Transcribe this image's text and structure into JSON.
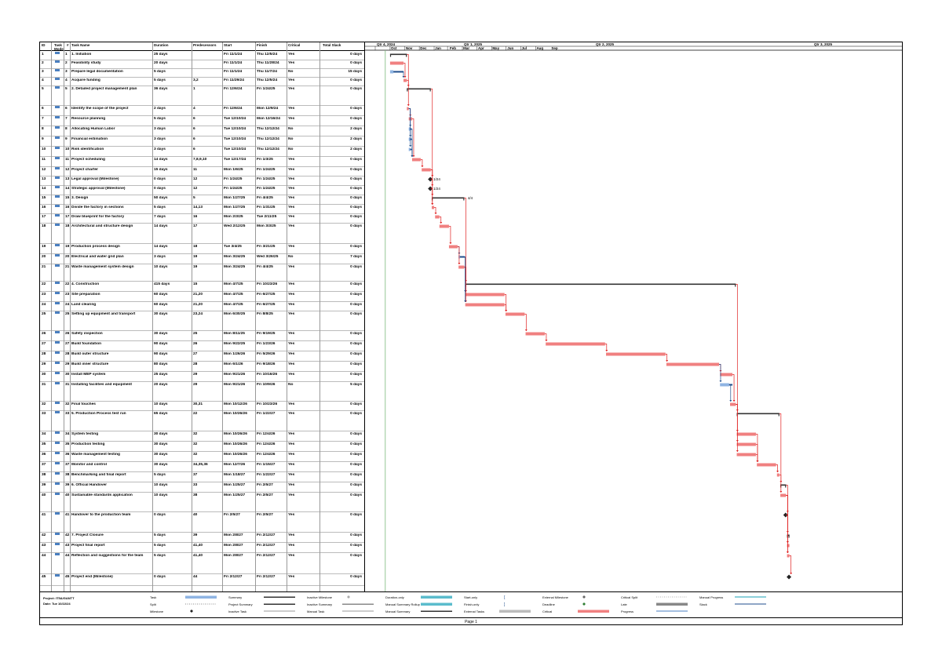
{
  "columns": [
    "ID",
    "Task Mode",
    "#",
    "Task Name",
    "Duration",
    "Predecessors",
    "Start",
    "Finish",
    "Critical",
    "Total Slack"
  ],
  "timescale": {
    "quarters": [
      "Qtr 4, 2024",
      "Qtr 1, 2025",
      "Qtr 2, 2025",
      "Qtr 3, 2025"
    ],
    "months": [
      "Oct",
      "Nov",
      "Dec",
      "Jan",
      "Feb",
      "Mar",
      "Apr",
      "May",
      "Jun",
      "Jul",
      "Aug",
      "Sep"
    ]
  },
  "tasks": [
    {
      "id": "1",
      "n": "1",
      "name": "1. Initiation",
      "dur": "25 days",
      "pred": "",
      "start": "Fri 11/1/24",
      "finish": "Thu 12/5/24",
      "crit": "Yes",
      "slack": "0 days",
      "h": 11
    },
    {
      "id": "2",
      "n": "2",
      "name": "Feasibility study",
      "dur": "20 days",
      "pred": "",
      "start": "Fri 11/1/24",
      "finish": "Thu 11/28/24",
      "crit": "Yes",
      "slack": "0 days",
      "h": 11
    },
    {
      "id": "3",
      "n": "3",
      "name": "Prepare legal documentation",
      "dur": "5 days",
      "pred": "",
      "start": "Fri 11/1/24",
      "finish": "Thu 11/7/24",
      "crit": "No",
      "slack": "15 days",
      "h": 11
    },
    {
      "id": "4",
      "n": "4",
      "name": "Acquire funding",
      "dur": "5 days",
      "pred": "3,2",
      "start": "Fri 11/29/24",
      "finish": "Thu 12/5/24",
      "crit": "Yes",
      "slack": "0 days",
      "h": 11
    },
    {
      "id": "5",
      "n": "5",
      "name": "2. Detailed project management plan",
      "dur": "36 days",
      "pred": "1",
      "start": "Fri 12/6/24",
      "finish": "Fri 1/24/25",
      "crit": "Yes",
      "slack": "0 days",
      "h": 25
    },
    {
      "id": "6",
      "n": "6",
      "name": "Identify the scope of the project",
      "dur": "2 days",
      "pred": "4",
      "start": "Fri 12/6/24",
      "finish": "Mon 12/9/24",
      "crit": "Yes",
      "slack": "0 days",
      "h": 13
    },
    {
      "id": "7",
      "n": "7",
      "name": "Resource planning",
      "dur": "5 days",
      "pred": "6",
      "start": "Tue 12/10/24",
      "finish": "Mon 12/16/24",
      "crit": "Yes",
      "slack": "0 days",
      "h": 13
    },
    {
      "id": "8",
      "n": "8",
      "name": "Allocating Human Labor",
      "dur": "3 days",
      "pred": "6",
      "start": "Tue 12/10/24",
      "finish": "Thu 12/12/24",
      "crit": "No",
      "slack": "2 days",
      "h": 13
    },
    {
      "id": "9",
      "n": "9",
      "name": "Financial estimation",
      "dur": "3 days",
      "pred": "6",
      "start": "Tue 12/10/24",
      "finish": "Thu 12/12/24",
      "crit": "No",
      "slack": "2 days",
      "h": 13
    },
    {
      "id": "10",
      "n": "10",
      "name": "Risk identification",
      "dur": "3 days",
      "pred": "6",
      "start": "Tue 12/10/24",
      "finish": "Thu 12/12/24",
      "crit": "No",
      "slack": "2 days",
      "h": 13
    },
    {
      "id": "11",
      "n": "11",
      "name": "Project scheduling",
      "dur": "14 days",
      "pred": "7,8,9,10",
      "start": "Tue 12/17/24",
      "finish": "Fri 1/3/25",
      "crit": "Yes",
      "slack": "0 days",
      "h": 13
    },
    {
      "id": "12",
      "n": "12",
      "name": "Project charter",
      "dur": "15 days",
      "pred": "11",
      "start": "Mon 1/6/25",
      "finish": "Fri 1/24/25",
      "crit": "Yes",
      "slack": "0 days",
      "h": 12
    },
    {
      "id": "13",
      "n": "13",
      "name": "Legal approval (Milestone)",
      "dur": "0 days",
      "pred": "12",
      "start": "Fri 1/24/25",
      "finish": "Fri 1/24/25",
      "crit": "Yes",
      "slack": "0 days",
      "h": 12
    },
    {
      "id": "14",
      "n": "14",
      "name": "Strategic approval (Milestone)",
      "dur": "0 days",
      "pred": "12",
      "start": "Fri 1/24/25",
      "finish": "Fri 1/24/25",
      "crit": "Yes",
      "slack": "0 days",
      "h": 12
    },
    {
      "id": "15",
      "n": "15",
      "name": "3. Design",
      "dur": "50 days",
      "pred": "5",
      "start": "Mon 1/27/25",
      "finish": "Fri 4/4/25",
      "crit": "Yes",
      "slack": "0 days",
      "h": 12
    },
    {
      "id": "16",
      "n": "16",
      "name": "Divide the factory in sections",
      "dur": "5 days",
      "pred": "14,13",
      "start": "Mon 1/27/25",
      "finish": "Fri 1/31/25",
      "crit": "Yes",
      "slack": "0 days",
      "h": 12
    },
    {
      "id": "17",
      "n": "17",
      "name": "Draw blueprint for the factory",
      "dur": "7 days",
      "pred": "16",
      "start": "Mon 2/3/25",
      "finish": "Tue 2/11/25",
      "crit": "Yes",
      "slack": "0 days",
      "h": 12
    },
    {
      "id": "18",
      "n": "18",
      "name": "Architectural and structure design",
      "dur": "14 days",
      "pred": "17",
      "start": "Wed 2/12/25",
      "finish": "Mon 3/3/25",
      "crit": "Yes",
      "slack": "0 days",
      "h": 26
    },
    {
      "id": "19",
      "n": "19",
      "name": "Production process design",
      "dur": "14 days",
      "pred": "18",
      "start": "Tue 3/4/25",
      "finish": "Fri 3/21/25",
      "crit": "Yes",
      "slack": "0 days",
      "h": 13
    },
    {
      "id": "20",
      "n": "20",
      "name": "Electrical and water grid plan",
      "dur": "3 days",
      "pred": "19",
      "start": "Mon 3/24/25",
      "finish": "Wed 3/26/25",
      "crit": "No",
      "slack": "7 days",
      "h": 13
    },
    {
      "id": "21",
      "n": "21",
      "name": "Waste management system design",
      "dur": "10 days",
      "pred": "19",
      "start": "Mon 3/24/25",
      "finish": "Fri 4/4/25",
      "crit": "Yes",
      "slack": "0 days",
      "h": 22
    },
    {
      "id": "22",
      "n": "22",
      "name": "4. Construction",
      "dur": "415 days",
      "pred": "15",
      "start": "Mon 4/7/25",
      "finish": "Fri 10/23/26",
      "crit": "Yes",
      "slack": "0 days",
      "h": 13
    },
    {
      "id": "23",
      "n": "23",
      "name": "Site preparation",
      "dur": "60 days",
      "pred": "21,20",
      "start": "Mon 4/7/25",
      "finish": "Fri 6/27/25",
      "crit": "Yes",
      "slack": "0 days",
      "h": 13
    },
    {
      "id": "24",
      "n": "24",
      "name": "Land clearing",
      "dur": "60 days",
      "pred": "21,20",
      "start": "Mon 4/7/25",
      "finish": "Fri 6/27/25",
      "crit": "Yes",
      "slack": "0 days",
      "h": 12
    },
    {
      "id": "25",
      "n": "25",
      "name": "Setting up equipment and transport",
      "dur": "30 days",
      "pred": "23,24",
      "start": "Mon 6/30/25",
      "finish": "Fri 8/8/25",
      "crit": "Yes",
      "slack": "0 days",
      "h": 25
    },
    {
      "id": "26",
      "n": "26",
      "name": "Safety inspection",
      "dur": "30 days",
      "pred": "25",
      "start": "Mon 8/11/25",
      "finish": "Fri 9/19/25",
      "crit": "Yes",
      "slack": "0 days",
      "h": 13
    },
    {
      "id": "27",
      "n": "27",
      "name": "Build foundation",
      "dur": "90 days",
      "pred": "26",
      "start": "Mon 9/22/25",
      "finish": "Fri 1/23/26",
      "crit": "Yes",
      "slack": "0 days",
      "h": 13
    },
    {
      "id": "28",
      "n": "28",
      "name": "Build outer structure",
      "dur": "90 days",
      "pred": "27",
      "start": "Mon 1/26/26",
      "finish": "Fri 5/29/26",
      "crit": "Yes",
      "slack": "0 days",
      "h": 13
    },
    {
      "id": "29",
      "n": "29",
      "name": "Build inner structure",
      "dur": "80 days",
      "pred": "28",
      "start": "Mon 6/1/26",
      "finish": "Fri 9/18/26",
      "crit": "Yes",
      "slack": "0 days",
      "h": 13
    },
    {
      "id": "30",
      "n": "30",
      "name": "Install MEP system",
      "dur": "25 days",
      "pred": "29",
      "start": "Mon 9/21/26",
      "finish": "Fri 10/16/26",
      "crit": "Yes",
      "slack": "0 days",
      "h": 13
    },
    {
      "id": "31",
      "n": "31",
      "name": "Installing facilities and equipment",
      "dur": "20 days",
      "pred": "29",
      "start": "Mon 9/21/26",
      "finish": "Fri 10/9/26",
      "crit": "No",
      "slack": "5 days",
      "h": 25
    },
    {
      "id": "32",
      "n": "32",
      "name": "Final touches",
      "dur": "10 days",
      "pred": "30,31",
      "start": "Mon 10/12/26",
      "finish": "Fri 10/23/26",
      "crit": "Yes",
      "slack": "0 days",
      "h": 12
    },
    {
      "id": "33",
      "n": "33",
      "name": "5. Production Process test run",
      "dur": "65 days",
      "pred": "22",
      "start": "Mon 10/26/26",
      "finish": "Fri 1/22/27",
      "crit": "Yes",
      "slack": "0 days",
      "h": 26
    },
    {
      "id": "34",
      "n": "34",
      "name": "System testing",
      "dur": "30 days",
      "pred": "32",
      "start": "Mon 10/26/26",
      "finish": "Fri 12/4/26",
      "crit": "Yes",
      "slack": "0 days",
      "h": 13
    },
    {
      "id": "35",
      "n": "35",
      "name": "Production testing",
      "dur": "30 days",
      "pred": "32",
      "start": "Mon 10/26/26",
      "finish": "Fri 12/4/26",
      "crit": "Yes",
      "slack": "0 days",
      "h": 13
    },
    {
      "id": "36",
      "n": "36",
      "name": "Waste management testing",
      "dur": "30 days",
      "pred": "32",
      "start": "Mon 10/26/26",
      "finish": "Fri 12/4/26",
      "crit": "Yes",
      "slack": "0 days",
      "h": 13
    },
    {
      "id": "37",
      "n": "37",
      "name": "Monitor and control",
      "dur": "30 days",
      "pred": "34,35,36",
      "start": "Mon 12/7/26",
      "finish": "Fri 1/15/27",
      "crit": "Yes",
      "slack": "0 days",
      "h": 13
    },
    {
      "id": "38",
      "n": "38",
      "name": "Benchmarking and final report",
      "dur": "5 days",
      "pred": "37",
      "start": "Mon 1/18/27",
      "finish": "Fri 1/22/27",
      "crit": "Yes",
      "slack": "0 days",
      "h": 13
    },
    {
      "id": "39",
      "n": "39",
      "name": "6. Official Handover",
      "dur": "10 days",
      "pred": "33",
      "start": "Mon 1/25/27",
      "finish": "Fri 2/5/27",
      "crit": "Yes",
      "slack": "0 days",
      "h": 13
    },
    {
      "id": "40",
      "n": "40",
      "name": "Sustainable standards application",
      "dur": "10 days",
      "pred": "38",
      "start": "Mon 1/25/27",
      "finish": "Fri 2/5/27",
      "crit": "Yes",
      "slack": "0 days",
      "h": 25
    },
    {
      "id": "41",
      "n": "41",
      "name": "Handover to the production team",
      "dur": "0 days",
      "pred": "40",
      "start": "Fri 2/5/27",
      "finish": "Fri 2/5/27",
      "crit": "Yes",
      "slack": "0 days",
      "h": 26
    },
    {
      "id": "42",
      "n": "42",
      "name": "7. Project Closure",
      "dur": "5 days",
      "pred": "39",
      "start": "Mon 2/8/27",
      "finish": "Fri 2/12/27",
      "crit": "Yes",
      "slack": "0 days",
      "h": 13
    },
    {
      "id": "43",
      "n": "43",
      "name": "Project final report",
      "dur": "5 days",
      "pred": "41,40",
      "start": "Mon 2/8/27",
      "finish": "Fri 2/12/27",
      "crit": "Yes",
      "slack": "0 days",
      "h": 13
    },
    {
      "id": "44",
      "n": "44",
      "name": "Reflection and suggestions for the team",
      "dur": "5 days",
      "pred": "41,40",
      "start": "Mon 2/8/27",
      "finish": "Fri 2/12/27",
      "crit": "Yes",
      "slack": "0 days",
      "h": 27
    },
    {
      "id": "45",
      "n": "45",
      "name": "Project end (Milestone)",
      "dur": "0 days",
      "pred": "44",
      "start": "Fri 2/12/27",
      "finish": "Fri 2/12/27",
      "crit": "Yes",
      "slack": "0 days",
      "h": 15
    }
  ],
  "milestone_labels": {
    "m13": "1/24",
    "m14": "1/24",
    "s15": "4/4"
  },
  "project_info": {
    "project": "Project: IT5A/GANTT",
    "date": "Date: Tue 10/22/24"
  },
  "legend": [
    [
      "Task",
      "Summary",
      "Inactive Milestone",
      "Duration-only",
      "Start-only",
      "External Milestone",
      "Critical Split",
      "Manual Progress"
    ],
    [
      "Split",
      "Project Summary",
      "Inactive Summary",
      "Manual Summary Rollup",
      "Finish-only",
      "Deadline",
      "Late",
      "Slack"
    ],
    [
      "Milestone",
      "Inactive Task",
      "Manual Task",
      "Manual Summary",
      "External Tasks",
      "Critical",
      "Progress",
      ""
    ]
  ],
  "footer": "Page 1",
  "colors": {
    "task": "#8fb4e3",
    "critical": "#f08080",
    "summary": "#333333",
    "link": "#1f4e8c",
    "crit_link": "#e02020"
  }
}
